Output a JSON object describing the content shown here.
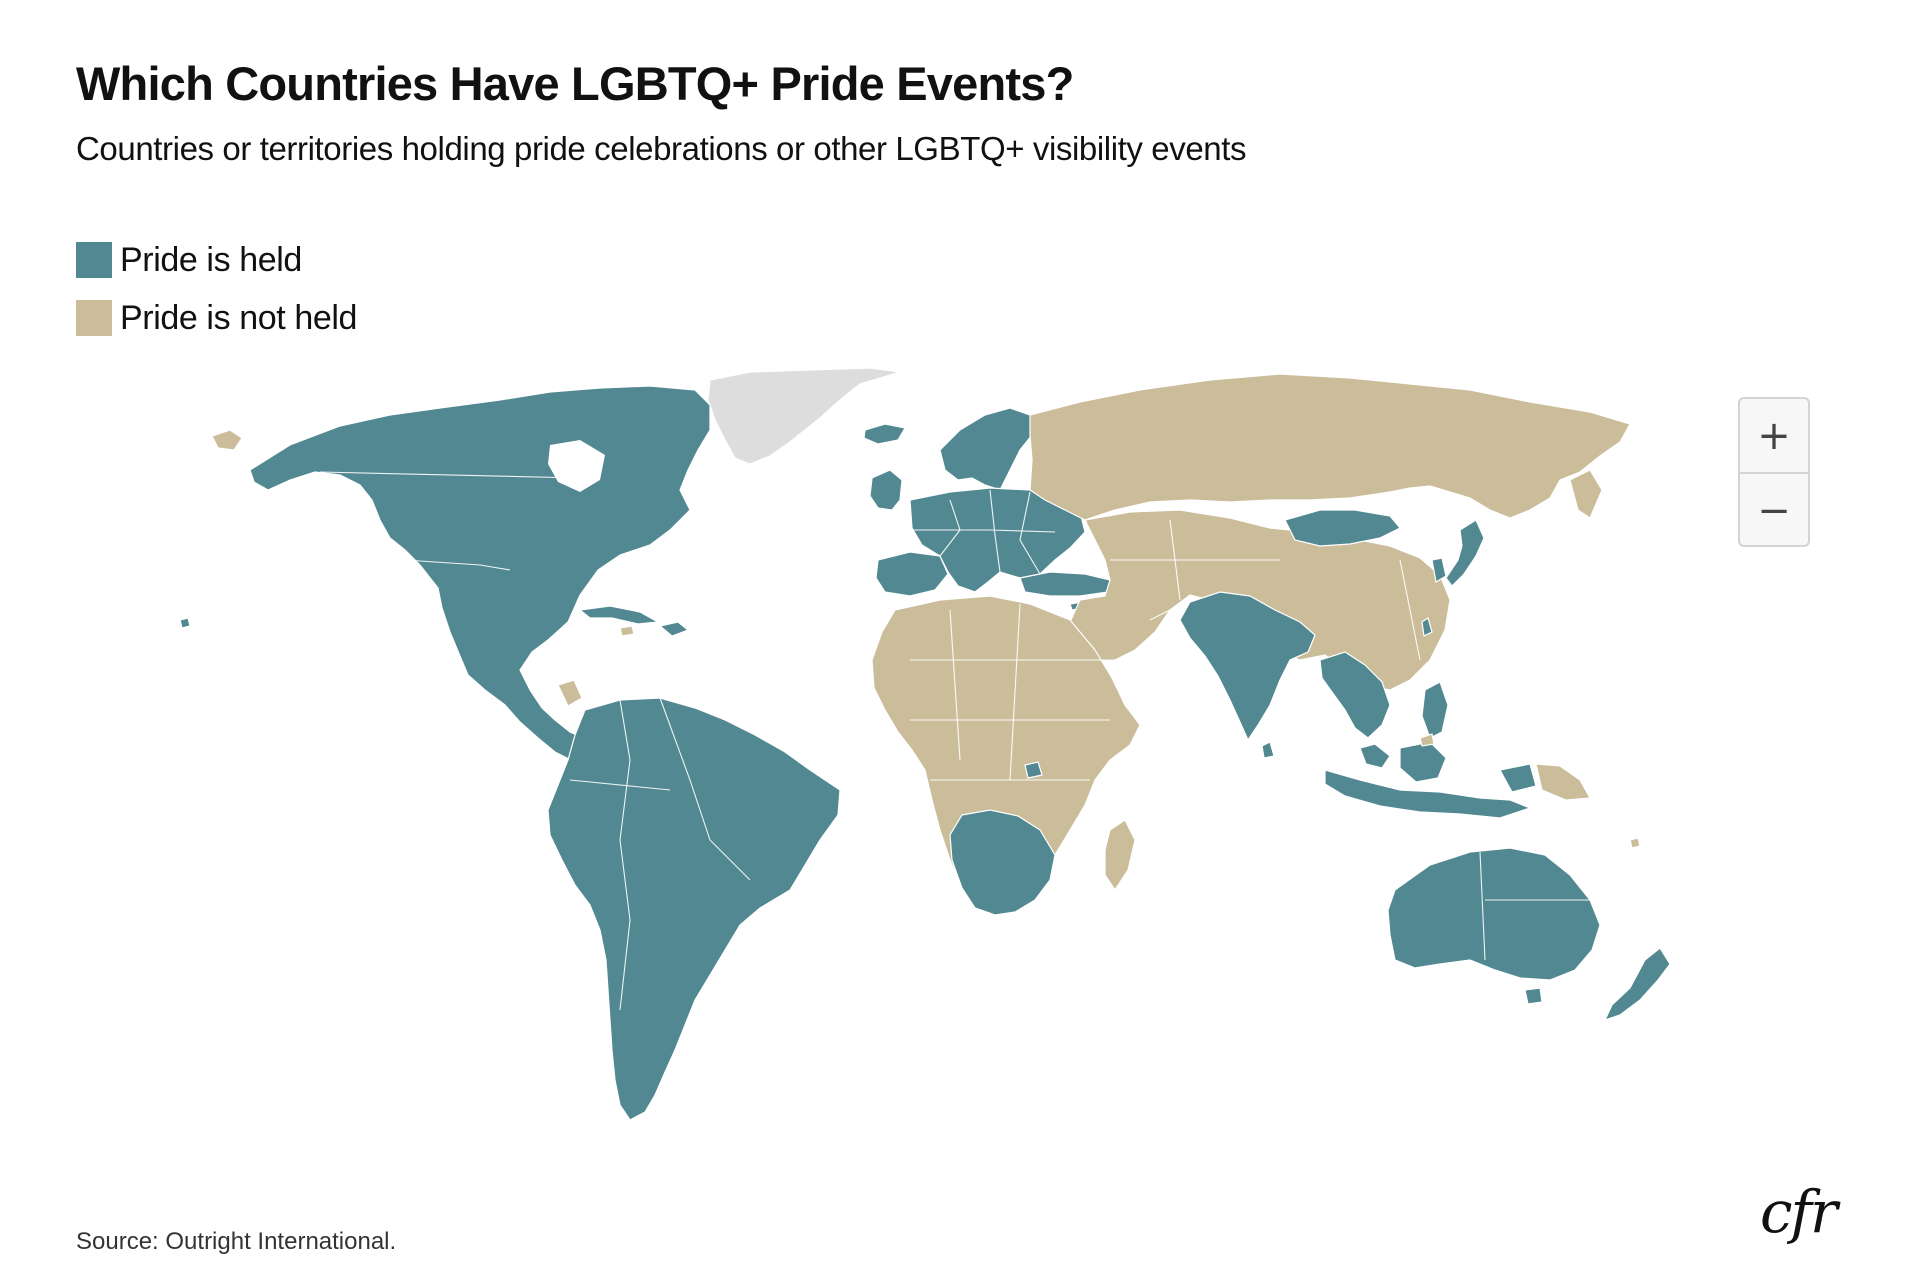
{
  "title": "Which Countries Have LGBTQ+ Pride Events?",
  "subtitle": "Countries or territories holding pride celebrations or other LGBTQ+ visibility events",
  "legend": [
    {
      "label": "Pride is held",
      "color": "#528891"
    },
    {
      "label": "Pride is not held",
      "color": "#cbbd9a"
    }
  ],
  "nodata_color": "#dddddd",
  "zoom": {
    "in_label": "+",
    "out_label": "−"
  },
  "source": "Source: Outright International.",
  "logo": "cfr"
}
